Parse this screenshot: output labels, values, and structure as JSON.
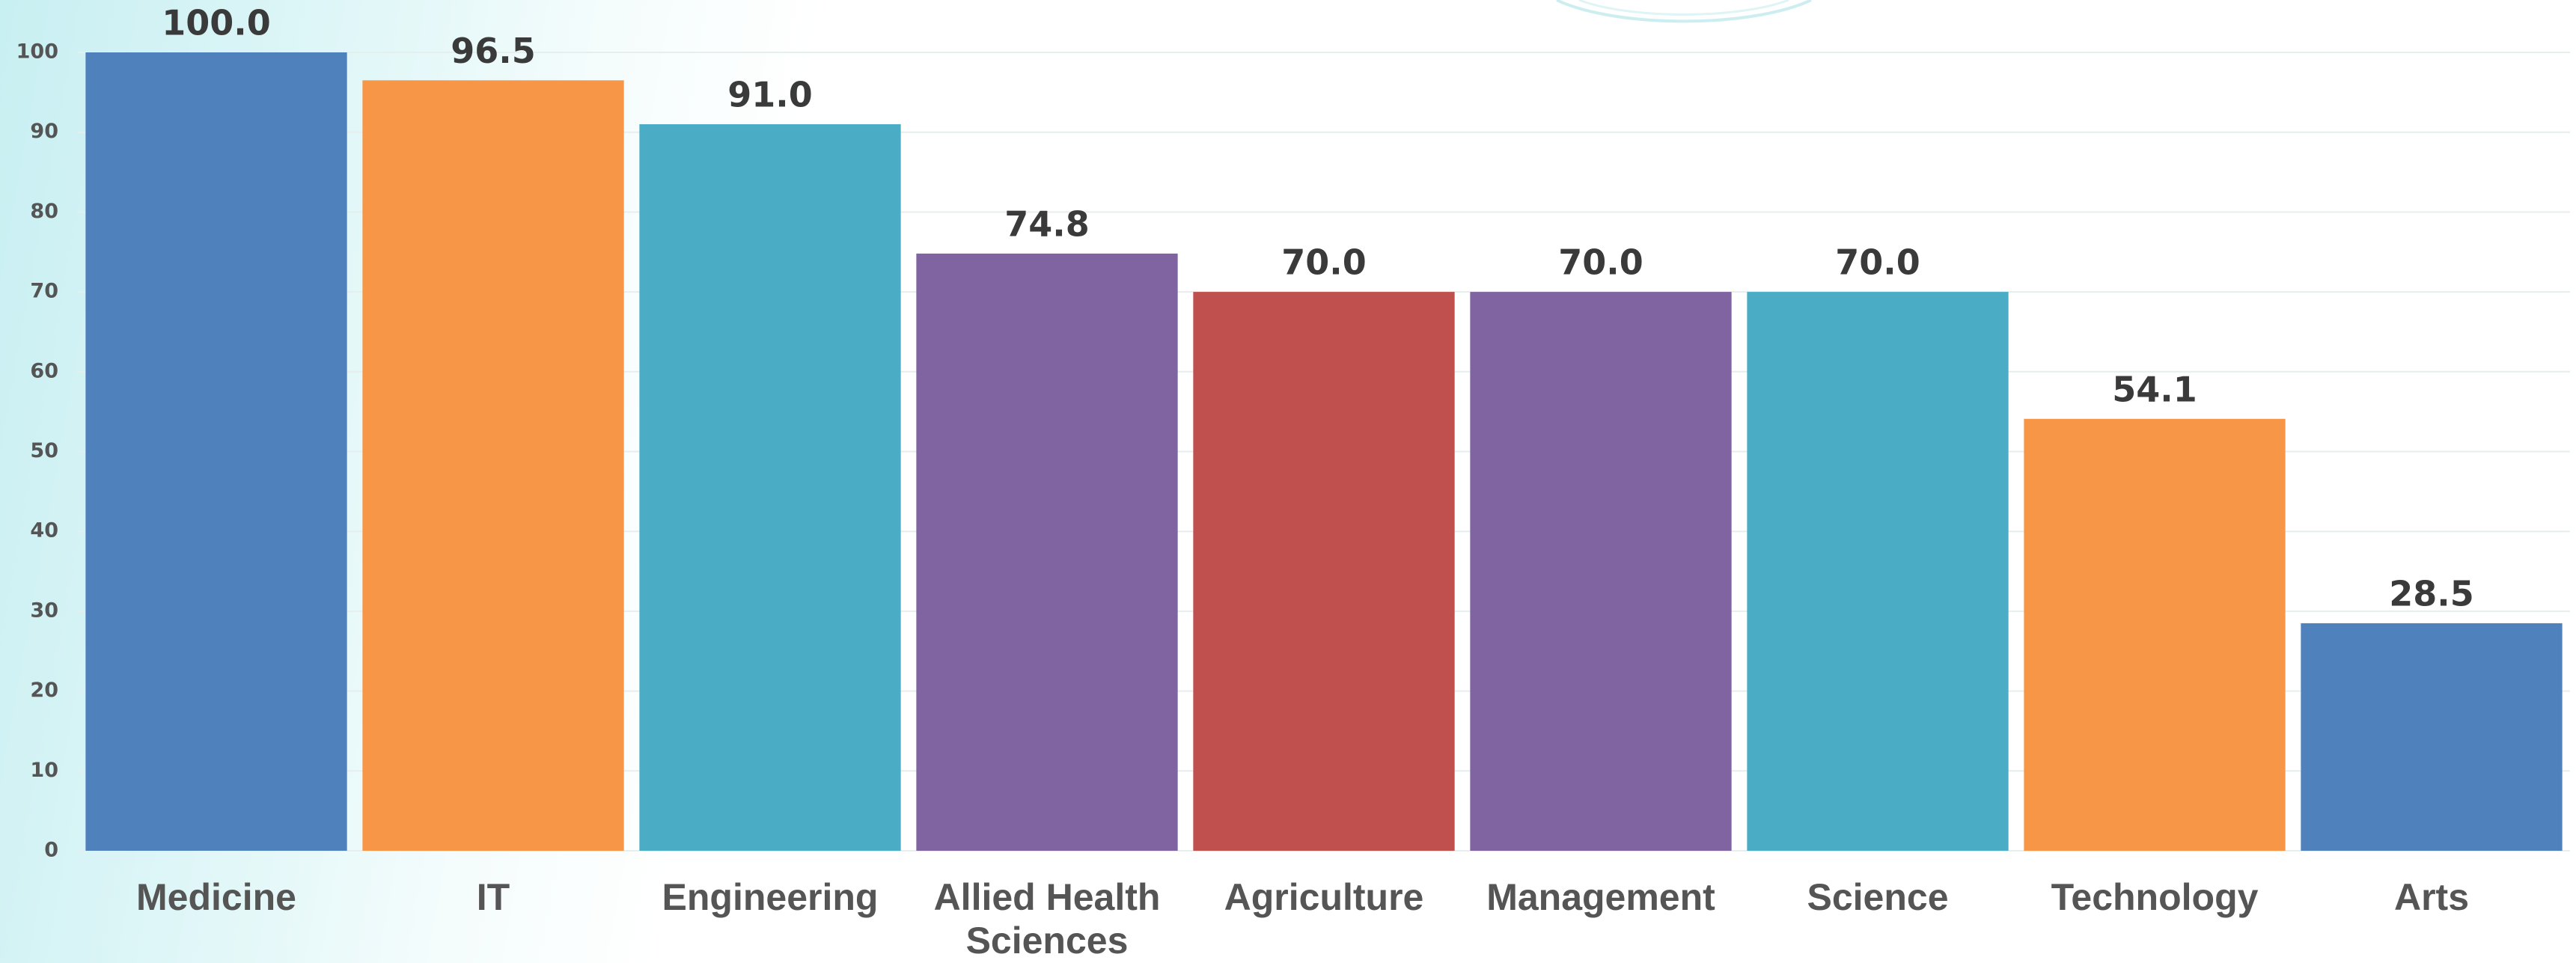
{
  "chart_data": {
    "type": "bar",
    "categories": [
      "Medicine",
      "IT",
      "Engineering",
      "Allied Health Sciences",
      "Agriculture",
      "Management",
      "Science",
      "Technology",
      "Arts"
    ],
    "values": [
      100,
      96.5,
      91,
      74.8,
      70,
      70,
      70,
      54.1,
      28.5
    ],
    "value_labels": [
      "100.0",
      "96.5",
      "91.0",
      "74.8",
      "70.0",
      "70.0",
      "70.0",
      "54.1",
      "28.5"
    ],
    "colors": [
      "#4f81bd",
      "#f79646",
      "#4bacc6",
      "#8064a2",
      "#c0504d",
      "#8064a2",
      "#4bacc6",
      "#f79646",
      "#4f81bd"
    ],
    "ylim": [
      0,
      100
    ],
    "yticks": [
      0,
      10,
      20,
      30,
      40,
      50,
      60,
      70,
      80,
      90,
      100
    ],
    "grid": true
  }
}
